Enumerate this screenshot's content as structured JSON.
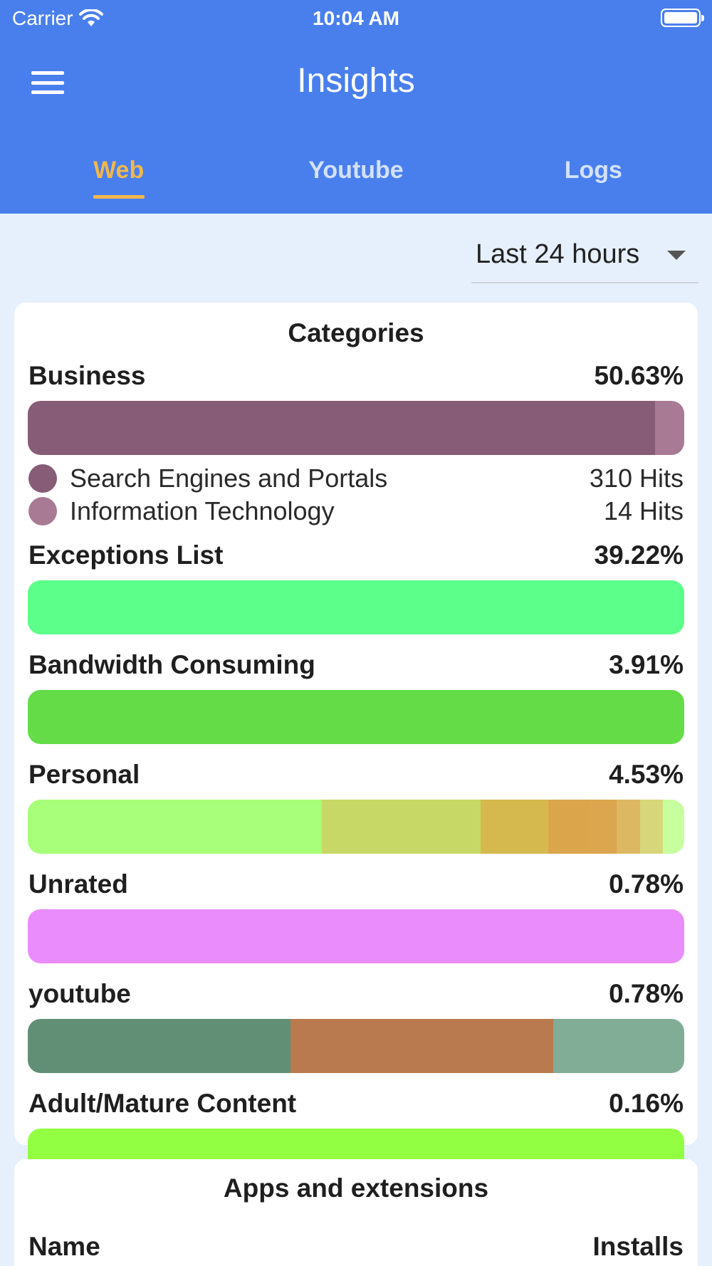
{
  "status_bar": {
    "carrier": "Carrier",
    "time": "10:04 AM"
  },
  "header": {
    "title": "Insights"
  },
  "tabs": [
    {
      "label": "Web",
      "active": true
    },
    {
      "label": "Youtube",
      "active": false
    },
    {
      "label": "Logs",
      "active": false
    }
  ],
  "range_selector": {
    "value": "Last 24 hours"
  },
  "categories_card": {
    "title": "Categories",
    "categories": [
      {
        "name": "Business",
        "percent": "50.63%",
        "segments": [
          {
            "share": 0.955,
            "color": "#875c77"
          },
          {
            "share": 0.045,
            "color": "#a97a94"
          }
        ],
        "subcategories": [
          {
            "name": "Search Engines and Portals",
            "hits": "310 Hits",
            "color": "#875c77"
          },
          {
            "name": "Information Technology",
            "hits": "14 Hits",
            "color": "#a97a94"
          }
        ]
      },
      {
        "name": "Exceptions List",
        "percent": "39.22%",
        "segments": [
          {
            "share": 1,
            "color": "#5cff8a"
          }
        ],
        "subcategories": []
      },
      {
        "name": "Bandwidth Consuming",
        "percent": "3.91%",
        "segments": [
          {
            "share": 1,
            "color": "#63dc47"
          }
        ],
        "subcategories": []
      },
      {
        "name": "Personal",
        "percent": "4.53%",
        "segments": [
          {
            "share": 0.448,
            "color": "#a8ff7a"
          },
          {
            "share": 0.242,
            "color": "#c8d866"
          },
          {
            "share": 0.103,
            "color": "#d5b94f"
          },
          {
            "share": 0.064,
            "color": "#dba54c"
          },
          {
            "share": 0.04,
            "color": "#dca64e"
          },
          {
            "share": 0.036,
            "color": "#ddb863"
          },
          {
            "share": 0.034,
            "color": "#d7d67a"
          },
          {
            "share": 0.033,
            "color": "#c7fe9e"
          }
        ],
        "subcategories": []
      },
      {
        "name": "Unrated",
        "percent": "0.78%",
        "segments": [
          {
            "share": 1,
            "color": "#ea8cfc"
          }
        ],
        "subcategories": []
      },
      {
        "name": "youtube",
        "percent": "0.78%",
        "segments": [
          {
            "share": 0.4,
            "color": "#618f76"
          },
          {
            "share": 0.4,
            "color": "#b97a4f"
          },
          {
            "share": 0.2,
            "color": "#81ac96"
          }
        ],
        "subcategories": []
      },
      {
        "name": "Adult/Mature Content",
        "percent": "0.16%",
        "segments": [
          {
            "share": 1,
            "color": "#92ff42"
          }
        ],
        "subcategories": []
      }
    ]
  },
  "apps_card": {
    "title": "Apps and extensions",
    "columns": {
      "name": "Name",
      "installs": "Installs"
    }
  },
  "colors": {
    "primary": "#497fed",
    "tab_active": "#f2b84b",
    "background": "#e6f0fc"
  }
}
